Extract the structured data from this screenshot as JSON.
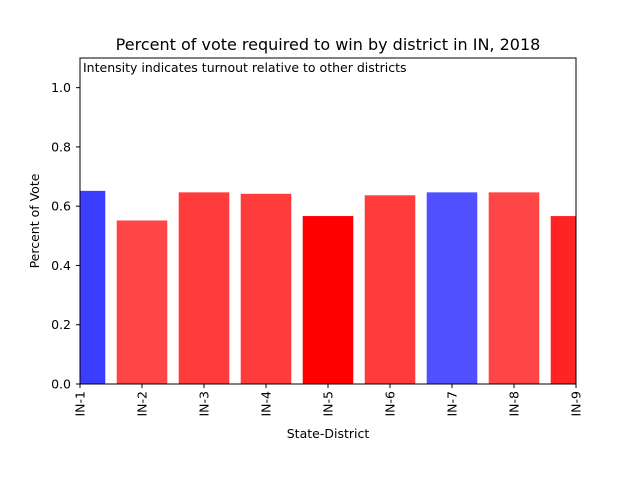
{
  "chart_data": {
    "type": "bar",
    "title": "Percent of vote required to win by district in IN, 2018",
    "annotation": "Intensity indicates turnout relative to other districts",
    "xlabel": "State-District",
    "ylabel": "Percent of Vote",
    "ylim": [
      0,
      1.1
    ],
    "yticks": [
      0.0,
      0.2,
      0.4,
      0.6,
      0.8,
      1.0
    ],
    "ytick_labels": [
      "0.0",
      "0.2",
      "0.4",
      "0.6",
      "0.8",
      "1.0"
    ],
    "grid": false,
    "legend": "none",
    "categories": [
      "IN-1",
      "IN-2",
      "IN-3",
      "IN-4",
      "IN-5",
      "IN-6",
      "IN-7",
      "IN-8",
      "IN-9"
    ],
    "values": [
      0.65,
      0.55,
      0.645,
      0.64,
      0.565,
      0.635,
      0.645,
      0.645,
      0.565
    ],
    "colors": [
      "#3c3cff",
      "#ff4646",
      "#ff3c3c",
      "#ff3c3c",
      "#ff0000",
      "#ff3c3c",
      "#5050ff",
      "#ff4646",
      "#ff2424"
    ]
  }
}
